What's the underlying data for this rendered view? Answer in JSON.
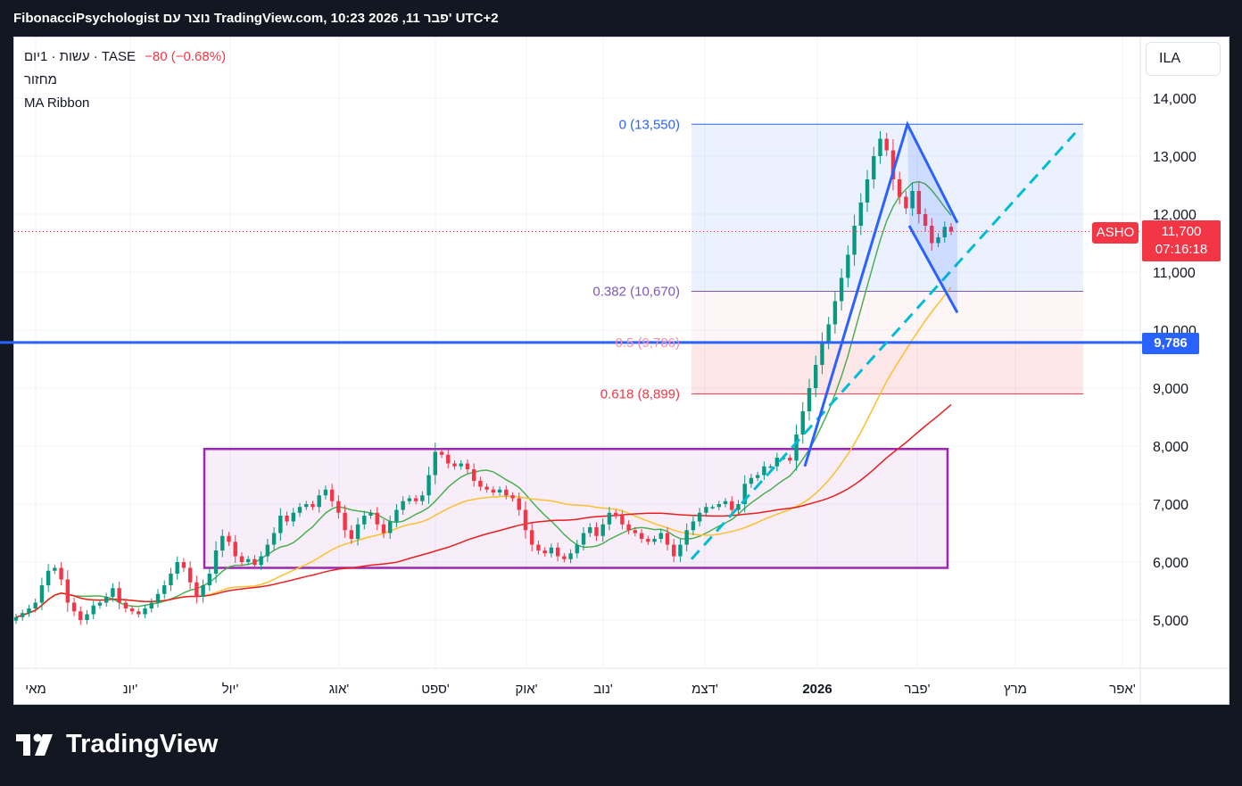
{
  "header": {
    "title": "FibonacciPsychologist נוצר עם TradingView.com, 10:23 2026 ,11 פבר' UTC+2"
  },
  "legend": {
    "symbol_line": "עשות · 1יום · TASE",
    "change": "−80 (−0.68%)",
    "volume_label": "מחזור",
    "indicator_label": "MA Ribbon"
  },
  "currency_button": "ILA",
  "price_badge": {
    "ticker": "ASHO",
    "price": "11,700",
    "countdown": "07:16:18"
  },
  "level_badge": "9,786",
  "brand": {
    "name": "TradingView"
  },
  "colors": {
    "up": "#089981",
    "down": "#f23645",
    "ma_fast": "#4caf50",
    "ma_mid": "#fbc02d",
    "ma_slow": "#e91e1e",
    "level_line": "#2962ff",
    "trendline": "#00bcd4",
    "range_box": "#9c27b0",
    "flag": "#2962ff"
  },
  "chart_data": {
    "type": "candlestick",
    "y_axis": {
      "range": [
        4200,
        15000
      ],
      "ticks": [
        "5,000",
        "6,000",
        "7,000",
        "8,000",
        "9,000",
        "10,000",
        "11,000",
        "12,000",
        "13,000",
        "14,000"
      ]
    },
    "x_axis": {
      "labels": [
        "מאי",
        "יונ'",
        "יול'",
        "אוג'",
        "ספט'",
        "אוק'",
        "נוב'",
        "דצמ'",
        "2026",
        "פבר'",
        "מרץ",
        "אפר'"
      ]
    },
    "fib_levels": [
      {
        "label": "0 (13,550)",
        "value": 13550,
        "color": "#2962ff"
      },
      {
        "label": "0.382 (10,670)",
        "value": 10670,
        "color": "#7e57c2"
      },
      {
        "label": "0.5 (9,786)",
        "value": 9786,
        "color": "#f48fb1"
      },
      {
        "label": "0.618 (8,899)",
        "value": 8899,
        "color": "#f23645"
      }
    ],
    "horizontal_level": 9786,
    "last_price": 11700,
    "range_box": {
      "low": 5900,
      "high": 7950
    },
    "closes": [
      5050,
      5120,
      5200,
      5300,
      5600,
      5850,
      5900,
      5700,
      5300,
      5150,
      5000,
      5100,
      5250,
      5300,
      5400,
      5550,
      5300,
      5200,
      5150,
      5100,
      5200,
      5300,
      5450,
      5600,
      5800,
      6000,
      5900,
      5650,
      5400,
      5600,
      5800,
      6200,
      6450,
      6350,
      6100,
      6000,
      6050,
      5950,
      6100,
      6300,
      6500,
      6800,
      6700,
      6850,
      6950,
      7000,
      6950,
      7150,
      7250,
      7050,
      6850,
      6550,
      6400,
      6650,
      6800,
      6850,
      6650,
      6500,
      6700,
      6900,
      7050,
      7100,
      7050,
      7150,
      7500,
      7900,
      7850,
      7700,
      7650,
      7700,
      7600,
      7400,
      7300,
      7250,
      7200,
      7250,
      7150,
      7100,
      6900,
      6550,
      6300,
      6200,
      6150,
      6250,
      6100,
      6050,
      6150,
      6300,
      6500,
      6600,
      6450,
      6650,
      6850,
      6800,
      6650,
      6550,
      6500,
      6400,
      6350,
      6400,
      6500,
      6300,
      6100,
      6300,
      6550,
      6700,
      6850,
      6950,
      6950,
      7000,
      7050,
      6900,
      7000,
      7350,
      7450,
      7500,
      7650,
      7650,
      7800,
      7800,
      7750,
      8200,
      8600,
      9000,
      9400,
      9800,
      10100,
      10500,
      10900,
      11300,
      11800,
      12200,
      12600,
      13000,
      13300,
      13100,
      12600,
      12300,
      12100,
      12400,
      12000,
      11800,
      11500,
      11600,
      11780,
      11700
    ]
  }
}
